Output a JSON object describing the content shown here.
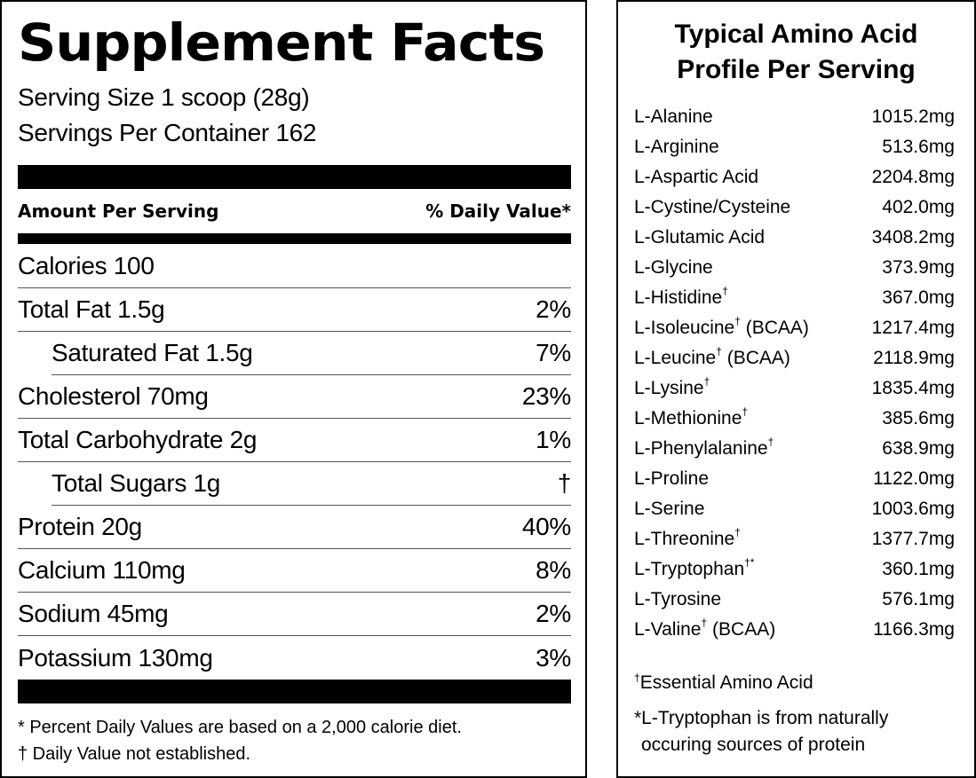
{
  "facts": {
    "title": "Supplement Facts",
    "serving_size": "Serving Size 1 scoop (28g)",
    "servings_per_container": "Servings Per Container 162",
    "header_left": "Amount Per Serving",
    "header_right": "% Daily Value*",
    "calories": "Calories 100",
    "rows": [
      {
        "label": "Total Fat 1.5g",
        "dv": "2%"
      },
      {
        "label": "Saturated Fat 1.5g",
        "dv": "7%"
      },
      {
        "label": "Cholesterol 70mg",
        "dv": "23%"
      },
      {
        "label": "Total Carbohydrate 2g",
        "dv": "1%"
      },
      {
        "label": "Total Sugars 1g",
        "dv": "†"
      },
      {
        "label": "Protein 20g",
        "dv": "40%"
      },
      {
        "label": "Calcium 110mg",
        "dv": "8%"
      },
      {
        "label": "Sodium 45mg",
        "dv": "2%"
      },
      {
        "label": "Potassium 130mg",
        "dv": "3%"
      }
    ],
    "footnote1": "* Percent Daily Values are based on a 2,000 calorie diet.",
    "footnote2": "† Daily Value not established."
  },
  "amino": {
    "title_line1": "Typical Amino Acid",
    "title_line2": "Profile Per Serving",
    "rows": [
      {
        "name": "L-Alanine",
        "mark": "",
        "suffix": "",
        "amount": "1015.2mg"
      },
      {
        "name": "L-Arginine",
        "mark": "",
        "suffix": "",
        "amount": "513.6mg"
      },
      {
        "name": "L-Aspartic Acid",
        "mark": "",
        "suffix": "",
        "amount": "2204.8mg"
      },
      {
        "name": "L-Cystine/Cysteine",
        "mark": "",
        "suffix": "",
        "amount": "402.0mg"
      },
      {
        "name": "L-Glutamic Acid",
        "mark": "",
        "suffix": "",
        "amount": "3408.2mg"
      },
      {
        "name": "L-Glycine",
        "mark": "",
        "suffix": "",
        "amount": "373.9mg"
      },
      {
        "name": "L-Histidine",
        "mark": "†",
        "suffix": "",
        "amount": "367.0mg"
      },
      {
        "name": "L-Isoleucine",
        "mark": "†",
        "suffix": " (BCAA)",
        "amount": "1217.4mg"
      },
      {
        "name": "L-Leucine",
        "mark": "†",
        "suffix": " (BCAA)",
        "amount": "2118.9mg"
      },
      {
        "name": "L-Lysine",
        "mark": "†",
        "suffix": "",
        "amount": "1835.4mg"
      },
      {
        "name": "L-Methionine",
        "mark": "†",
        "suffix": "",
        "amount": "385.6mg"
      },
      {
        "name": "L-Phenylalanine",
        "mark": "†",
        "suffix": "",
        "amount": "638.9mg"
      },
      {
        "name": "L-Proline",
        "mark": "",
        "suffix": "",
        "amount": "1122.0mg"
      },
      {
        "name": "L-Serine",
        "mark": "",
        "suffix": "",
        "amount": "1003.6mg"
      },
      {
        "name": "L-Threonine",
        "mark": "†",
        "suffix": "",
        "amount": "1377.7mg"
      },
      {
        "name": "L-Tryptophan",
        "mark": "†*",
        "suffix": "",
        "amount": "360.1mg"
      },
      {
        "name": "L-Tyrosine",
        "mark": "",
        "suffix": "",
        "amount": "576.1mg"
      },
      {
        "name": "L-Valine",
        "mark": "†",
        "suffix": " (BCAA)",
        "amount": "1166.3mg"
      }
    ],
    "note1_mark": "†",
    "note1_text": "Essential Amino Acid",
    "note2_line1": "*L-Tryptophan is from naturally",
    "note2_line2": "occuring sources of protein"
  }
}
